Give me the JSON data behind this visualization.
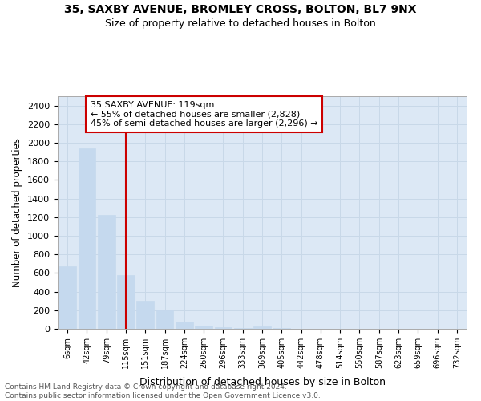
{
  "title_line1": "35, SAXBY AVENUE, BROMLEY CROSS, BOLTON, BL7 9NX",
  "title_line2": "Size of property relative to detached houses in Bolton",
  "xlabel": "Distribution of detached houses by size in Bolton",
  "ylabel": "Number of detached properties",
  "bar_values": [
    670,
    1940,
    1220,
    580,
    300,
    200,
    75,
    35,
    20,
    5,
    25,
    5,
    2,
    1,
    1,
    1,
    0,
    0,
    0,
    0,
    0
  ],
  "bar_labels": [
    "6sqm",
    "42sqm",
    "79sqm",
    "115sqm",
    "151sqm",
    "187sqm",
    "224sqm",
    "260sqm",
    "296sqm",
    "333sqm",
    "369sqm",
    "405sqm",
    "442sqm",
    "478sqm",
    "514sqm",
    "550sqm",
    "587sqm",
    "623sqm",
    "659sqm",
    "696sqm",
    "732sqm"
  ],
  "bar_color": "#c5d9ee",
  "bar_edgecolor": "#c5d9ee",
  "ylim": [
    0,
    2500
  ],
  "yticks": [
    0,
    200,
    400,
    600,
    800,
    1000,
    1200,
    1400,
    1600,
    1800,
    2000,
    2200,
    2400
  ],
  "vline_x": 3.0,
  "vline_color": "#cc0000",
  "annotation_text": "35 SAXBY AVENUE: 119sqm\n← 55% of detached houses are smaller (2,828)\n45% of semi-detached houses are larger (2,296) →",
  "annotation_box_color": "#ffffff",
  "annotation_box_edgecolor": "#cc0000",
  "grid_color": "#c8d8e8",
  "background_color": "#dce8f5",
  "footer_line1": "Contains HM Land Registry data © Crown copyright and database right 2024.",
  "footer_line2": "Contains public sector information licensed under the Open Government Licence v3.0."
}
